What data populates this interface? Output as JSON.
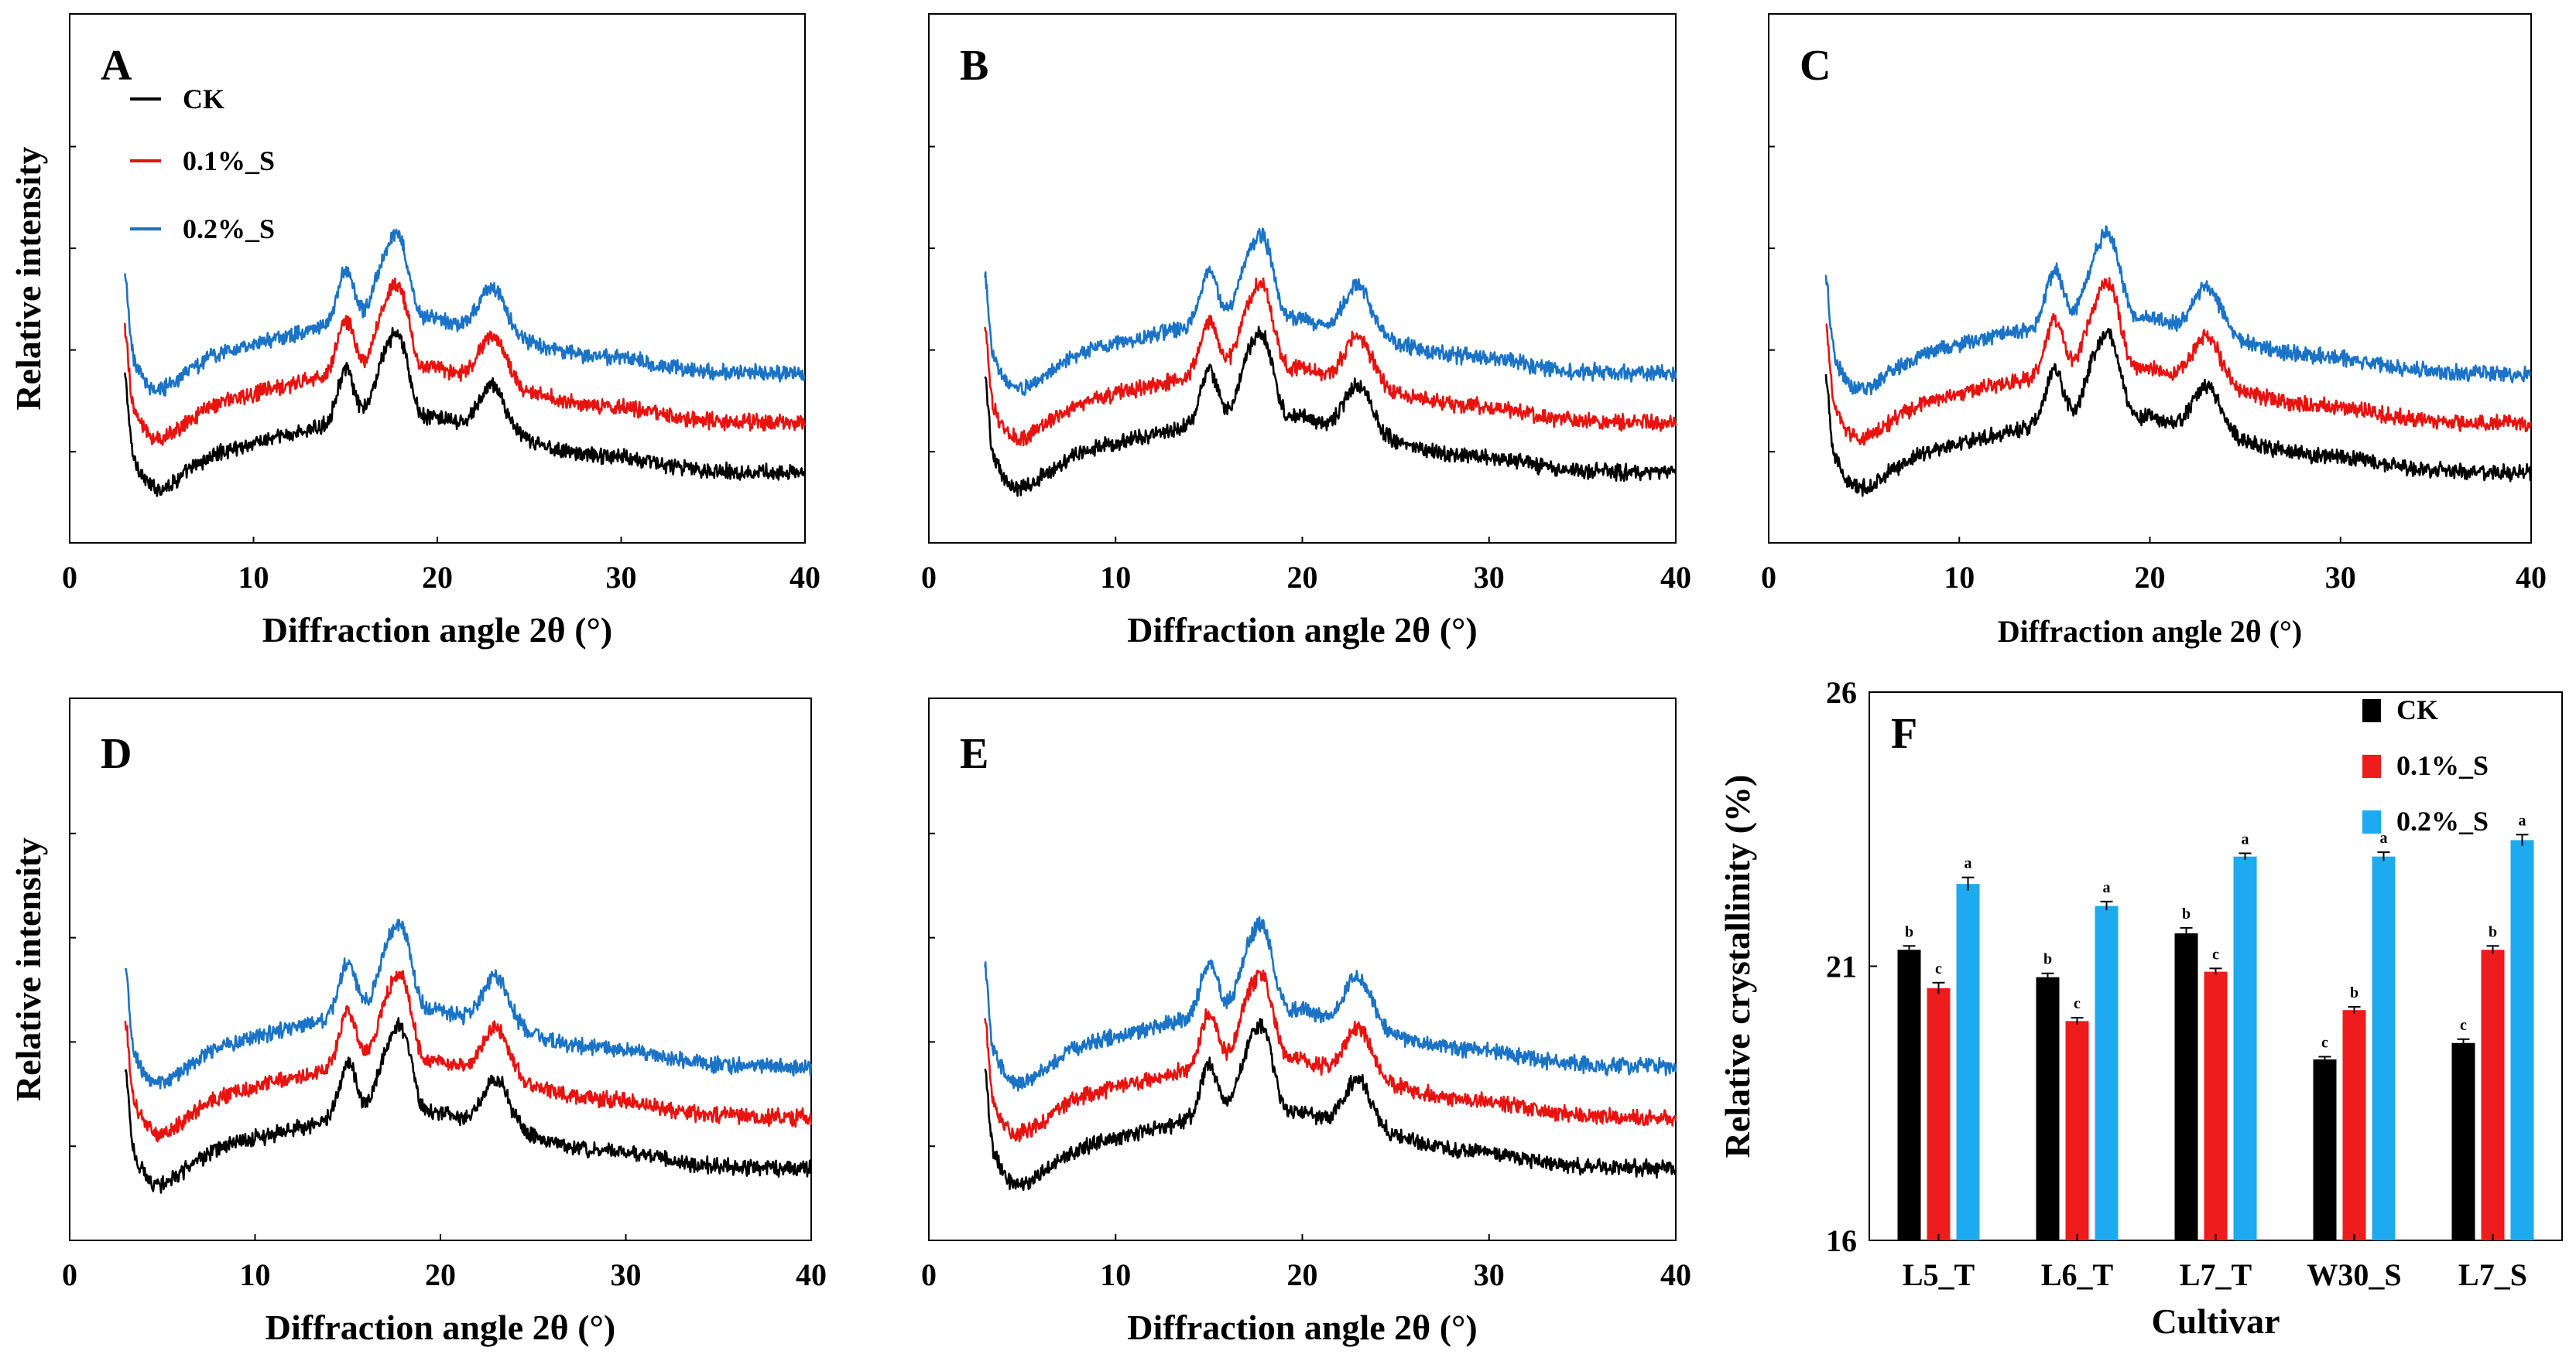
{
  "chart_data": [
    {
      "type": "line",
      "panel": "A",
      "xlabel": "Diffraction angle 2θ (°)",
      "ylabel": "Relative intensity",
      "xlim": [
        0,
        40
      ],
      "x_ticks": [
        "0",
        "10",
        "20",
        "30",
        "40"
      ],
      "y_ticks": "unlabeled",
      "legend": {
        "placement": "top-left",
        "entries": [
          "CK",
          "0.1%_S",
          "0.2%_S"
        ]
      },
      "series": [
        {
          "name": "CK",
          "color": "#000000",
          "offset": 0.0
        },
        {
          "name": "0.1%_S",
          "color": "#e8120f",
          "offset": 0.85
        },
        {
          "name": "0.2%_S",
          "color": "#1a73c6",
          "offset": 1.7
        }
      ],
      "peaks_2theta": [
        15.0,
        17.1,
        18.0,
        23.0
      ]
    },
    {
      "type": "line",
      "panel": "B",
      "xlabel": "Diffraction angle 2θ (°)",
      "xlim": [
        0,
        40
      ],
      "x_ticks": [
        "0",
        "10",
        "20",
        "30",
        "40"
      ],
      "series": [
        {
          "name": "CK",
          "color": "#000000",
          "offset": 0.0
        },
        {
          "name": "0.1%_S",
          "color": "#e8120f",
          "offset": 0.85
        },
        {
          "name": "0.2%_S",
          "color": "#1a73c6",
          "offset": 1.7
        }
      ],
      "peaks_2theta": [
        15.0,
        17.1,
        18.0,
        23.0
      ]
    },
    {
      "type": "line",
      "panel": "C",
      "xlabel": "Diffraction angle 2θ (°)",
      "xlim": [
        0,
        40
      ],
      "x_ticks": [
        "0",
        "10",
        "20",
        "30",
        "40"
      ],
      "series": [
        {
          "name": "CK",
          "color": "#000000",
          "offset": 0.0
        },
        {
          "name": "0.1%_S",
          "color": "#e8120f",
          "offset": 0.85
        },
        {
          "name": "0.2%_S",
          "color": "#1a73c6",
          "offset": 1.7
        }
      ],
      "peaks_2theta": [
        15.0,
        17.1,
        18.0,
        23.0
      ]
    },
    {
      "type": "line",
      "panel": "D",
      "xlabel": "Diffraction angle 2θ (°)",
      "ylabel": "Relative intensity",
      "xlim": [
        0,
        40
      ],
      "x_ticks": [
        "0",
        "10",
        "20",
        "30",
        "40"
      ],
      "series": [
        {
          "name": "CK",
          "color": "#000000",
          "offset": 0.0
        },
        {
          "name": "0.1%_S",
          "color": "#e8120f",
          "offset": 0.85
        },
        {
          "name": "0.2%_S",
          "color": "#1a73c6",
          "offset": 1.7
        }
      ],
      "peaks_2theta": [
        15.0,
        17.1,
        18.0,
        23.0
      ]
    },
    {
      "type": "line",
      "panel": "E",
      "xlabel": "Diffraction angle 2θ (°)",
      "xlim": [
        0,
        40
      ],
      "x_ticks": [
        "0",
        "10",
        "20",
        "30",
        "40"
      ],
      "series": [
        {
          "name": "CK",
          "color": "#000000",
          "offset": 0.0
        },
        {
          "name": "0.1%_S",
          "color": "#e8120f",
          "offset": 0.85
        },
        {
          "name": "0.2%_S",
          "color": "#1a73c6",
          "offset": 1.7
        }
      ],
      "peaks_2theta": [
        15.0,
        17.1,
        18.0,
        23.0
      ]
    },
    {
      "type": "bar",
      "panel": "F",
      "xlabel": "Cultivar",
      "ylabel": "Relative crystallinity (%)",
      "ylim": [
        16,
        26
      ],
      "y_ticks": [
        "16",
        "21",
        "26"
      ],
      "categories": [
        "L5_T",
        "L6_T",
        "L7_T",
        "W30_S",
        "L7_S"
      ],
      "legend": {
        "placement": "top-right",
        "entries": [
          "CK",
          "0.1%_S",
          "0.2%_S"
        ]
      },
      "series": [
        {
          "name": "CK",
          "color": "#000000",
          "values": [
            21.3,
            20.8,
            21.6,
            19.3,
            19.6
          ],
          "errors": [
            0.07,
            0.07,
            0.1,
            0.05,
            0.07
          ],
          "letters": [
            "b",
            "b",
            "b",
            "c",
            "c"
          ]
        },
        {
          "name": "0.1%_S",
          "color": "#ee1c1c",
          "values": [
            20.6,
            20.0,
            20.9,
            20.2,
            21.3
          ],
          "errors": [
            0.1,
            0.06,
            0.06,
            0.06,
            0.07
          ],
          "letters": [
            "c",
            "c",
            "c",
            "b",
            "b"
          ]
        },
        {
          "name": "0.2%_S",
          "color": "#1eaaee",
          "values": [
            22.5,
            22.1,
            23.0,
            23.0,
            23.3
          ],
          "errors": [
            0.12,
            0.08,
            0.06,
            0.08,
            0.1
          ],
          "letters": [
            "a",
            "a",
            "a",
            "a",
            "a"
          ]
        }
      ]
    }
  ]
}
